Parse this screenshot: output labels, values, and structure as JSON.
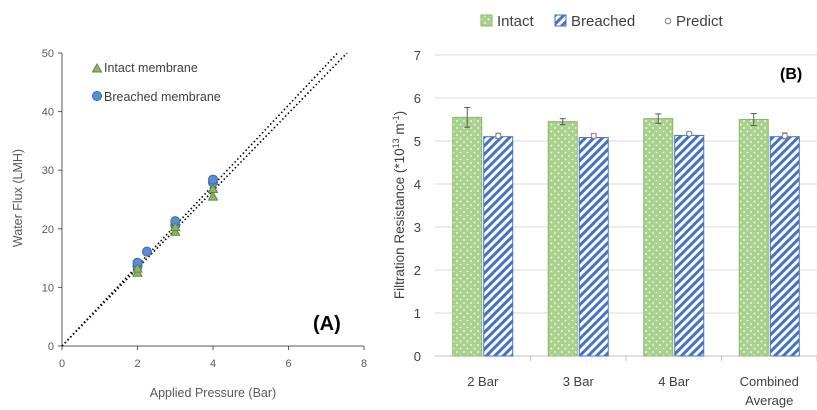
{
  "colors": {
    "intact": "#8DB565",
    "intact_fill": "#A9D18E",
    "breached": "#4472C4",
    "breached_marker": "#5B8CD8",
    "predict": "#7F7F7F",
    "axis": "#595959",
    "grid": "#D9D9D9"
  },
  "chart_data": [
    {
      "type": "scatter",
      "panel_label": "(A)",
      "xlabel": "Applied Pressure (Bar)",
      "ylabel": "Water Flux (LMH)",
      "xlim": [
        0,
        8
      ],
      "ylim": [
        0,
        50
      ],
      "x_ticks": [
        "0",
        "2",
        "4",
        "6",
        "8"
      ],
      "y_ticks": [
        "0",
        "10",
        "20",
        "30",
        "40",
        "50"
      ],
      "grid": false,
      "legend_position": "top-left",
      "series": [
        {
          "name": "Intact membrane",
          "marker": "triangle",
          "points": [
            [
              2,
              12.5
            ],
            [
              2,
              13.2
            ],
            [
              3,
              19.5
            ],
            [
              3,
              20.3
            ],
            [
              4,
              25.5
            ],
            [
              4,
              26.8
            ]
          ]
        },
        {
          "name": "Breached membrane",
          "marker": "circle",
          "points": [
            [
              2,
              13.6
            ],
            [
              2,
              14.2
            ],
            [
              2.25,
              16.1
            ],
            [
              3,
              20.6
            ],
            [
              3,
              21.3
            ],
            [
              4,
              27.9
            ],
            [
              4,
              28.4
            ]
          ]
        }
      ],
      "fit_lines": [
        {
          "style": "dotted",
          "from": [
            0,
            0
          ],
          "to": [
            7.3,
            50
          ]
        },
        {
          "style": "dotted",
          "from": [
            0,
            0
          ],
          "to": [
            7.55,
            50
          ]
        }
      ]
    },
    {
      "type": "bar",
      "panel_label": "(B)",
      "xlabel": "",
      "ylabel": "Filtration Resistance (*10",
      "ylabel_sup": "13",
      "ylabel_unit": " m",
      "ylabel_sup2": "-1",
      "ylabel_end": ")",
      "ylim": [
        0,
        7
      ],
      "y_ticks": [
        "0",
        "1",
        "2",
        "3",
        "4",
        "5",
        "6",
        "7"
      ],
      "grid": true,
      "legend_position": "top",
      "categories": [
        [
          "2 Bar"
        ],
        [
          "3 Bar"
        ],
        [
          "4 Bar"
        ],
        [
          "Combined",
          "Average"
        ]
      ],
      "series": [
        {
          "name": "Intact",
          "pattern": "dotted",
          "values": [
            5.55,
            5.45,
            5.52,
            5.5
          ],
          "errors": [
            0.23,
            0.07,
            0.11,
            0.14
          ]
        },
        {
          "name": "Breached",
          "pattern": "diagonal-stripes",
          "values": [
            5.1,
            5.08,
            5.13,
            5.1
          ],
          "errors": [
            0,
            0,
            0,
            0
          ]
        },
        {
          "name": "Predict",
          "marker": "open-circle",
          "values": [
            5.12,
            5.12,
            5.17,
            5.12
          ],
          "errors": [
            0.06,
            0.05,
            0.04,
            0.07
          ]
        }
      ]
    }
  ]
}
